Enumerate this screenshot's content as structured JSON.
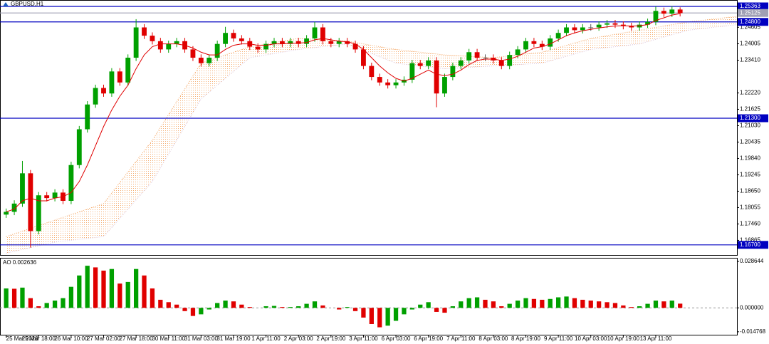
{
  "chart_data": [
    {
      "type": "candlestick",
      "title": "GBPUSD,H1",
      "xlim": [
        -0.76,
        90
      ],
      "ylim": [
        1.16333,
        1.25596
      ],
      "yticks": [
        1.24605,
        1.24005,
        {
          "value": 1.2341,
          "label": "1.23410"
        },
        {
          "value": 1.2222,
          "label": "1.22220"
        },
        1.21625,
        {
          "value": 1.2103,
          "label": "1.21030"
        },
        1.20435,
        {
          "value": 1.1984,
          "label": "1.19840"
        },
        1.19245,
        {
          "value": 1.1865,
          "label": "1.18650"
        },
        1.18055,
        {
          "value": 1.1746,
          "label": "1.17460"
        },
        1.16865
      ],
      "open": [
        1.178,
        1.179,
        1.182,
        1.193,
        1.172,
        1.185,
        1.184,
        1.186,
        1.183,
        1.196,
        1.209,
        1.218,
        1.224,
        1.222,
        1.23,
        1.226,
        1.235,
        1.246,
        1.243,
        1.241,
        1.238,
        1.24,
        1.241,
        1.238,
        1.235,
        1.233,
        1.235,
        1.24,
        1.244,
        1.242,
        1.241,
        1.239,
        1.238,
        1.24,
        1.241,
        1.24,
        1.241,
        1.24,
        1.242,
        1.246,
        1.241,
        1.24,
        1.241,
        1.24,
        1.238,
        1.232,
        1.228,
        1.226,
        1.225,
        1.226,
        1.227,
        1.233,
        1.232,
        1.234,
        1.222,
        1.228,
        1.232,
        1.234,
        1.237,
        1.235,
        1.235,
        1.234,
        1.232,
        1.236,
        1.238,
        1.241,
        1.24,
        1.239,
        1.242,
        1.244,
        1.246,
        1.245,
        1.246,
        1.246,
        1.247,
        1.2475,
        1.247,
        1.2465,
        1.246,
        1.247,
        1.248,
        1.252,
        1.251,
        1.2525
      ],
      "high": [
        1.1802,
        1.1832,
        1.1975,
        1.1942,
        1.1862,
        1.1862,
        1.1872,
        1.1872,
        1.1972,
        1.2102,
        1.2192,
        1.2252,
        1.2252,
        1.2312,
        1.2312,
        1.2362,
        1.249,
        1.2472,
        1.2442,
        1.2422,
        1.2412,
        1.2422,
        1.2422,
        1.2392,
        1.2362,
        1.2362,
        1.2412,
        1.2462,
        1.2452,
        1.2432,
        1.2422,
        1.2402,
        1.2412,
        1.2422,
        1.2422,
        1.2422,
        1.2422,
        1.2432,
        1.248,
        1.2472,
        1.2422,
        1.2422,
        1.2422,
        1.2412,
        1.2392,
        1.2332,
        1.2292,
        1.2272,
        1.2272,
        1.2282,
        1.2342,
        1.2342,
        1.2352,
        1.2352,
        1.2292,
        1.2332,
        1.2352,
        1.2382,
        1.2382,
        1.2362,
        1.2362,
        1.2352,
        1.2372,
        1.2392,
        1.2422,
        1.2422,
        1.2412,
        1.2432,
        1.2452,
        1.2472,
        1.2472,
        1.2472,
        1.2472,
        1.2482,
        1.2487,
        1.2487,
        1.2482,
        1.2477,
        1.2482,
        1.2492,
        1.2536,
        1.2532,
        1.2537,
        1.2533
      ],
      "low": [
        1.1768,
        1.1778,
        1.1808,
        1.166,
        1.1708,
        1.1828,
        1.1828,
        1.1818,
        1.1818,
        1.1948,
        1.2078,
        1.2168,
        1.2208,
        1.2208,
        1.2248,
        1.2248,
        1.2338,
        1.2418,
        1.2398,
        1.2368,
        1.2368,
        1.2388,
        1.2368,
        1.2338,
        1.2318,
        1.2318,
        1.2338,
        1.2388,
        1.2408,
        1.2398,
        1.2378,
        1.2368,
        1.2368,
        1.2388,
        1.2388,
        1.2388,
        1.2388,
        1.2388,
        1.2408,
        1.2398,
        1.2388,
        1.2388,
        1.2388,
        1.2368,
        1.2308,
        1.2268,
        1.2248,
        1.2238,
        1.2238,
        1.2248,
        1.2258,
        1.2308,
        1.2308,
        1.217,
        1.2208,
        1.2268,
        1.2308,
        1.2328,
        1.2338,
        1.2338,
        1.2328,
        1.2308,
        1.2308,
        1.2348,
        1.2368,
        1.2388,
        1.2378,
        1.2378,
        1.2408,
        1.2428,
        1.2438,
        1.2438,
        1.2448,
        1.2448,
        1.2458,
        1.2458,
        1.2453,
        1.2448,
        1.2448,
        1.2458,
        1.2468,
        1.2498,
        1.2498,
        1.25
      ],
      "close": [
        1.179,
        1.182,
        1.193,
        1.172,
        1.185,
        1.184,
        1.186,
        1.183,
        1.196,
        1.209,
        1.218,
        1.224,
        1.222,
        1.23,
        1.226,
        1.235,
        1.246,
        1.243,
        1.241,
        1.238,
        1.24,
        1.241,
        1.238,
        1.235,
        1.233,
        1.235,
        1.24,
        1.244,
        1.242,
        1.241,
        1.239,
        1.238,
        1.24,
        1.241,
        1.24,
        1.241,
        1.24,
        1.242,
        1.246,
        1.241,
        1.24,
        1.241,
        1.24,
        1.238,
        1.232,
        1.228,
        1.226,
        1.225,
        1.226,
        1.227,
        1.233,
        1.232,
        1.234,
        1.222,
        1.228,
        1.232,
        1.234,
        1.237,
        1.235,
        1.235,
        1.234,
        1.232,
        1.236,
        1.238,
        1.241,
        1.24,
        1.239,
        1.242,
        1.244,
        1.246,
        1.245,
        1.246,
        1.246,
        1.247,
        1.2475,
        1.247,
        1.2465,
        1.246,
        1.247,
        1.248,
        1.252,
        1.251,
        1.2525,
        1.2512
      ],
      "up_color": "#00a000",
      "down_color": "#e00000",
      "ma": {
        "color": "#e00000",
        "values": [
          1.179,
          1.18,
          1.183,
          1.184,
          1.183,
          1.183,
          1.184,
          1.1845,
          1.186,
          1.19,
          1.196,
          1.203,
          1.21,
          1.216,
          1.221,
          1.225,
          1.231,
          1.236,
          1.239,
          1.24,
          1.24,
          1.24,
          1.2395,
          1.2385,
          1.237,
          1.236,
          1.236,
          1.238,
          1.2395,
          1.24,
          1.24,
          1.2395,
          1.2395,
          1.24,
          1.24,
          1.2402,
          1.2403,
          1.2405,
          1.2415,
          1.242,
          1.2415,
          1.241,
          1.2408,
          1.24,
          1.238,
          1.235,
          1.232,
          1.2295,
          1.2275,
          1.2265,
          1.2275,
          1.229,
          1.2305,
          1.229,
          1.2285,
          1.229,
          1.2305,
          1.2325,
          1.234,
          1.2345,
          1.2345,
          1.234,
          1.2345,
          1.2355,
          1.237,
          1.2385,
          1.239,
          1.24,
          1.2415,
          1.243,
          1.244,
          1.2448,
          1.2453,
          1.2458,
          1.2462,
          1.2465,
          1.2466,
          1.2465,
          1.2466,
          1.247,
          1.2485,
          1.2495,
          1.2505,
          1.251
        ]
      },
      "cloud": {
        "x": [
          0,
          6,
          12,
          18,
          24,
          30,
          36,
          42,
          48,
          54,
          60,
          66,
          72,
          78,
          84,
          90
        ],
        "span_a": [
          1.17,
          1.176,
          1.182,
          1.205,
          1.233,
          1.239,
          1.242,
          1.241,
          1.238,
          1.236,
          1.235,
          1.237,
          1.242,
          1.245,
          1.248,
          1.25
        ],
        "span_b": [
          1.164,
          1.168,
          1.17,
          1.19,
          1.22,
          1.235,
          1.238,
          1.24,
          1.233,
          1.231,
          1.232,
          1.233,
          1.238,
          1.24,
          1.245,
          1.247
        ],
        "color_a": "#f4a460",
        "color_b": "#d8bfd8"
      },
      "hlines": [
        {
          "value": 1.25363,
          "label": "1.25363",
          "color": "#0000c0"
        },
        {
          "value": 1.248,
          "label": "1.24800",
          "color": "#0000c0"
        },
        {
          "value": 1.213,
          "label": "1.21300",
          "color": "#0000c0"
        },
        {
          "value": 1.167,
          "label": "1.16700",
          "color": "#0000c0"
        },
        {
          "value": 1.25125,
          "label": "1.25125",
          "color": "#a0a0b4"
        }
      ]
    },
    {
      "type": "bar",
      "title": "AO 0.002636",
      "xlim": [
        -0.76,
        90
      ],
      "ylim": [
        -0.0166,
        0.0309
      ],
      "yticks": [
        0.028644,
        {
          "value": 0,
          "label": "0.000000"
        },
        -0.014768
      ],
      "values": [
        0.012,
        0.0118,
        0.0125,
        0.006,
        0.001,
        0.003,
        0.0045,
        0.006,
        0.013,
        0.02,
        0.026,
        0.025,
        0.023,
        0.024,
        0.015,
        0.016,
        0.024,
        0.02,
        0.012,
        0.005,
        0.0035,
        0.002,
        -0.002,
        -0.005,
        -0.004,
        -0.001,
        0.003,
        0.0045,
        0.004,
        0.002,
        0.0005,
        0.0,
        0.001,
        0.0012,
        0.0005,
        0.0005,
        0.001,
        0.0025,
        0.004,
        0.0015,
        0.0,
        -0.001,
        0.0005,
        -0.002,
        -0.006,
        -0.01,
        -0.012,
        -0.011,
        -0.008,
        -0.004,
        -0.001,
        0.002,
        0.0035,
        -0.0025,
        -0.003,
        0.001,
        0.004,
        0.006,
        0.0065,
        0.005,
        0.004,
        0.001,
        0.0025,
        0.0045,
        0.006,
        0.0055,
        0.005,
        0.0055,
        0.0065,
        0.007,
        0.006,
        0.005,
        0.0045,
        0.004,
        0.0035,
        0.003,
        0.0015,
        0.0005,
        0.001,
        0.0025,
        0.0045,
        0.004,
        0.0045,
        0.0026
      ],
      "up_color": "#00a000",
      "down_color": "#e00000",
      "xticks": [
        {
          "value": 0,
          "label": "25 Mar 2020"
        },
        {
          "value": 4,
          "label": "25 Mar 18:00"
        },
        {
          "value": 8,
          "label": "26 Mar 10:00"
        },
        {
          "value": 12,
          "label": "27 Mar 02:00"
        },
        {
          "value": 16,
          "label": "27 Mar 18:00"
        },
        {
          "value": 20,
          "label": "30 Mar 11:00"
        },
        {
          "value": 24,
          "label": "31 Mar 03:00"
        },
        {
          "value": 28,
          "label": "31 Mar 19:00"
        },
        {
          "value": 32,
          "label": "1 Apr 11:00"
        },
        {
          "value": 36,
          "label": "2 Apr 03:00"
        },
        {
          "value": 40,
          "label": "2 Apr 19:00"
        },
        {
          "value": 44,
          "label": "3 Apr 11:00"
        },
        {
          "value": 48,
          "label": "6 Apr 03:00"
        },
        {
          "value": 52,
          "label": "6 Apr 19:00"
        },
        {
          "value": 56,
          "label": "7 Apr 11:00"
        },
        {
          "value": 60,
          "label": "8 Apr 03:00"
        },
        {
          "value": 64,
          "label": "8 Apr 19:00"
        },
        {
          "value": 68,
          "label": "9 Apr 11:00"
        },
        {
          "value": 72,
          "label": "10 Apr 03:00"
        },
        {
          "value": 76,
          "label": "10 Apr 19:00"
        },
        {
          "value": 80,
          "label": "13 Apr 11:00"
        }
      ]
    }
  ]
}
